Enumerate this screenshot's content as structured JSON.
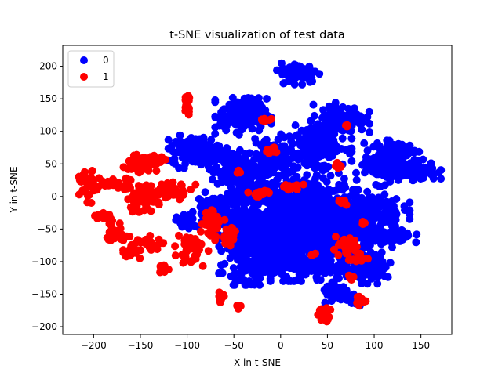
{
  "chart_data": {
    "type": "scatter",
    "title": "t-SNE visualization of test data",
    "xlabel": "X in t-SNE",
    "ylabel": "Y in t-SNE",
    "xlim": [
      -233,
      183
    ],
    "ylim": [
      -212,
      232
    ],
    "xticks": [
      -200,
      -150,
      -100,
      -50,
      0,
      50,
      100,
      150
    ],
    "yticks": [
      -200,
      -150,
      -100,
      -50,
      0,
      50,
      100,
      150,
      200
    ],
    "grid": false,
    "legend_position": "top-left",
    "series": [
      {
        "name": "0",
        "color": "#0000ff",
        "clusters": [
          {
            "cx": 20,
            "cy": -40,
            "rx": 60,
            "ry": 75,
            "n": 900
          },
          {
            "cx": -30,
            "cy": -70,
            "rx": 30,
            "ry": 55,
            "n": 300
          },
          {
            "cx": 60,
            "cy": -50,
            "rx": 40,
            "ry": 50,
            "n": 300
          },
          {
            "cx": -40,
            "cy": 125,
            "rx": 25,
            "ry": 25,
            "n": 180
          },
          {
            "cx": 20,
            "cy": 190,
            "rx": 20,
            "ry": 15,
            "n": 100
          },
          {
            "cx": 65,
            "cy": 120,
            "rx": 25,
            "ry": 20,
            "n": 120
          },
          {
            "cx": -90,
            "cy": 70,
            "rx": 25,
            "ry": 22,
            "n": 150
          },
          {
            "cx": -50,
            "cy": 40,
            "rx": 25,
            "ry": 30,
            "n": 150
          },
          {
            "cx": 110,
            "cy": 50,
            "rx": 20,
            "ry": 30,
            "n": 150
          },
          {
            "cx": 145,
            "cy": 40,
            "rx": 22,
            "ry": 15,
            "n": 90
          },
          {
            "cx": 130,
            "cy": 70,
            "rx": 15,
            "ry": 10,
            "n": 60
          },
          {
            "cx": 90,
            "cy": -20,
            "rx": 40,
            "ry": 25,
            "n": 150
          },
          {
            "cx": 110,
            "cy": -60,
            "rx": 30,
            "ry": 15,
            "n": 100
          },
          {
            "cx": 100,
            "cy": -110,
            "rx": 20,
            "ry": 20,
            "n": 80
          },
          {
            "cx": 60,
            "cy": -150,
            "rx": 15,
            "ry": 15,
            "n": 50
          },
          {
            "cx": 80,
            "cy": -160,
            "rx": 10,
            "ry": 8,
            "n": 30
          },
          {
            "cx": -70,
            "cy": -20,
            "rx": 20,
            "ry": 25,
            "n": 100
          },
          {
            "cx": 40,
            "cy": 80,
            "rx": 30,
            "ry": 30,
            "n": 200
          },
          {
            "cx": -10,
            "cy": 60,
            "rx": 20,
            "ry": 30,
            "n": 100
          },
          {
            "cx": -100,
            "cy": -40,
            "rx": 10,
            "ry": 10,
            "n": 30
          },
          {
            "cx": 30,
            "cy": -110,
            "rx": 60,
            "ry": 15,
            "n": 150
          },
          {
            "cx": -30,
            "cy": 5,
            "rx": 20,
            "ry": 15,
            "n": 80
          }
        ]
      },
      {
        "name": "1",
        "color": "#ff0000",
        "clusters": [
          {
            "cx": -205,
            "cy": 15,
            "rx": 10,
            "ry": 22,
            "n": 40
          },
          {
            "cx": -175,
            "cy": 20,
            "rx": 20,
            "ry": 8,
            "n": 35
          },
          {
            "cx": -150,
            "cy": 50,
            "rx": 15,
            "ry": 15,
            "n": 40
          },
          {
            "cx": -135,
            "cy": 55,
            "rx": 10,
            "ry": 8,
            "n": 20
          },
          {
            "cx": -145,
            "cy": 0,
            "rx": 20,
            "ry": 20,
            "n": 60
          },
          {
            "cx": -115,
            "cy": 10,
            "rx": 20,
            "ry": 12,
            "n": 40
          },
          {
            "cx": -190,
            "cy": -30,
            "rx": 8,
            "ry": 5,
            "n": 15
          },
          {
            "cx": -175,
            "cy": -55,
            "rx": 12,
            "ry": 15,
            "n": 30
          },
          {
            "cx": -160,
            "cy": -85,
            "rx": 10,
            "ry": 15,
            "n": 25
          },
          {
            "cx": -140,
            "cy": -70,
            "rx": 15,
            "ry": 10,
            "n": 25
          },
          {
            "cx": -125,
            "cy": -112,
            "rx": 5,
            "ry": 8,
            "n": 15
          },
          {
            "cx": -100,
            "cy": 140,
            "rx": 3,
            "ry": 15,
            "n": 20
          },
          {
            "cx": -95,
            "cy": -80,
            "rx": 15,
            "ry": 25,
            "n": 40
          },
          {
            "cx": -75,
            "cy": -40,
            "rx": 10,
            "ry": 25,
            "n": 30
          },
          {
            "cx": -55,
            "cy": -60,
            "rx": 8,
            "ry": 20,
            "n": 20
          },
          {
            "cx": -65,
            "cy": -155,
            "rx": 4,
            "ry": 10,
            "n": 12
          },
          {
            "cx": -45,
            "cy": -170,
            "rx": 4,
            "ry": 5,
            "n": 6
          },
          {
            "cx": -20,
            "cy": 5,
            "rx": 15,
            "ry": 5,
            "n": 15
          },
          {
            "cx": 10,
            "cy": 15,
            "rx": 12,
            "ry": 5,
            "n": 15
          },
          {
            "cx": -45,
            "cy": 38,
            "rx": 3,
            "ry": 3,
            "n": 4
          },
          {
            "cx": -10,
            "cy": 70,
            "rx": 8,
            "ry": 5,
            "n": 8
          },
          {
            "cx": -15,
            "cy": 118,
            "rx": 8,
            "ry": 3,
            "n": 6
          },
          {
            "cx": 70,
            "cy": -80,
            "rx": 15,
            "ry": 15,
            "n": 40
          },
          {
            "cx": 85,
            "cy": -95,
            "rx": 8,
            "ry": 5,
            "n": 10
          },
          {
            "cx": 65,
            "cy": -10,
            "rx": 5,
            "ry": 5,
            "n": 8
          },
          {
            "cx": 60,
            "cy": 47,
            "rx": 5,
            "ry": 5,
            "n": 8
          },
          {
            "cx": 70,
            "cy": 108,
            "rx": 3,
            "ry": 3,
            "n": 4
          },
          {
            "cx": 75,
            "cy": -125,
            "rx": 4,
            "ry": 3,
            "n": 4
          },
          {
            "cx": 85,
            "cy": -160,
            "rx": 6,
            "ry": 6,
            "n": 10
          },
          {
            "cx": 45,
            "cy": -180,
            "rx": 8,
            "ry": 10,
            "n": 20
          },
          {
            "cx": 90,
            "cy": -40,
            "rx": 4,
            "ry": 4,
            "n": 4
          },
          {
            "cx": 35,
            "cy": -90,
            "rx": 3,
            "ry": 3,
            "n": 3
          }
        ]
      }
    ]
  }
}
